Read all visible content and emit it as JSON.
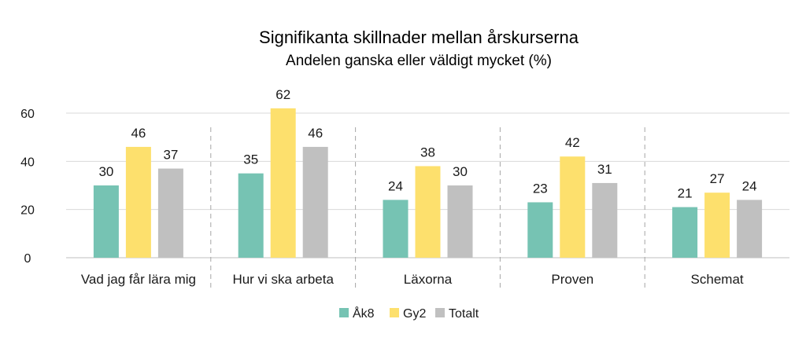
{
  "chart_data": {
    "type": "bar",
    "title": "Signifikanta skillnader mellan årskurserna",
    "subtitle": "Andelen ganska eller väldigt mycket (%)",
    "categories": [
      "Vad jag får lära mig",
      "Hur vi ska arbeta",
      "Läxorna",
      "Proven",
      "Schemat"
    ],
    "series": [
      {
        "name": "Åk8",
        "color": "#76c3b3",
        "values": [
          30,
          35,
          24,
          23,
          21
        ]
      },
      {
        "name": "Gy2",
        "color": "#fde06d",
        "values": [
          46,
          62,
          38,
          42,
          27
        ]
      },
      {
        "name": "Totalt",
        "color": "#c0c0c0",
        "values": [
          37,
          46,
          30,
          31,
          24
        ]
      }
    ],
    "ylim": [
      0,
      60
    ],
    "yticks": [
      0,
      20,
      40,
      60
    ],
    "xlabel": "",
    "ylabel": "",
    "grid": true,
    "legend_position": "bottom"
  }
}
